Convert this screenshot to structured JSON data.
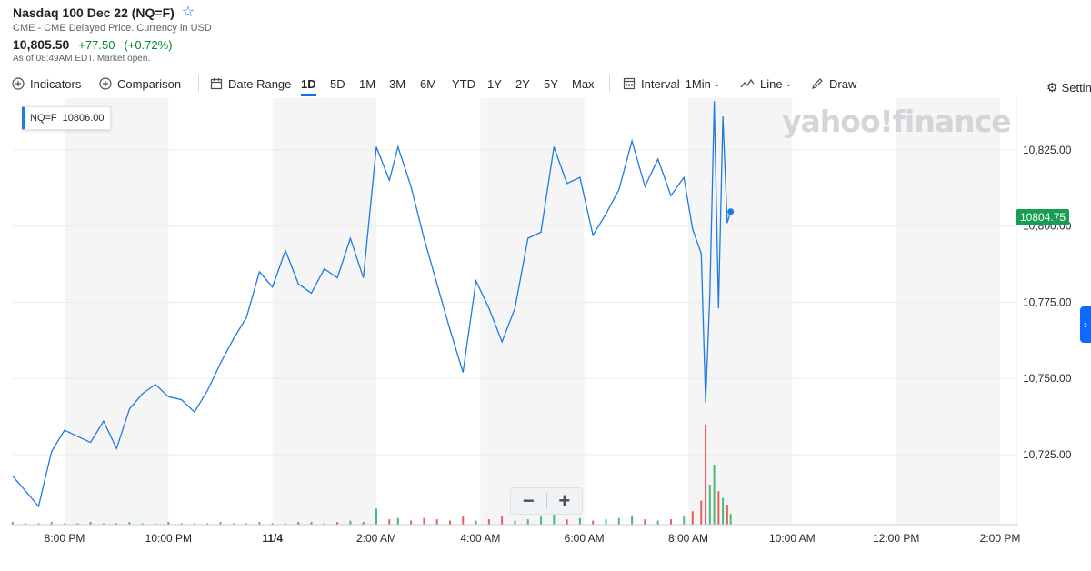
{
  "header": {
    "title": "Nasdaq 100 Dec 22 (NQ=F)",
    "subtitle": "CME - CME Delayed Price. Currency in USD",
    "price": "10,805.50",
    "change": "+77.50",
    "change_pct": "(+0.72%)",
    "status": "As of 08:49AM EDT. Market open."
  },
  "toolbar": {
    "indicators_label": "Indicators",
    "comparison_label": "Comparison",
    "date_range_label": "Date Range",
    "ranges": [
      "1D",
      "5D",
      "1M",
      "3M",
      "6M",
      "YTD",
      "1Y",
      "2Y",
      "5Y",
      "Max"
    ],
    "active_range": "1D",
    "interval_label": "Interval",
    "interval_value": "1Min",
    "chart_type_label": "Line",
    "draw_label": "Draw",
    "settings_label": "Settings"
  },
  "legend": {
    "symbol": "NQ=F",
    "value": "10806.00"
  },
  "watermark": "yahoo!finance",
  "current_price_tag": "10804.75",
  "colors": {
    "line": "#1f7ae0",
    "up": "#26a65b",
    "down": "#e0373a",
    "accent": "#0f69ff"
  },
  "icons": [
    "star-icon",
    "indicators-plus-icon",
    "comparison-plus-icon",
    "calendar-icon",
    "interval-icon",
    "chevron-down-icon",
    "line-chart-icon",
    "draw-pencil-icon",
    "gear-icon",
    "chevron-right-icon"
  ],
  "chart_data": {
    "type": "line",
    "series": [
      {
        "name": "NQ=F",
        "x": [
          "19:00",
          "19:15",
          "19:30",
          "19:45",
          "20:00",
          "20:15",
          "20:30",
          "20:45",
          "21:00",
          "21:15",
          "21:30",
          "21:45",
          "22:00",
          "22:15",
          "22:30",
          "22:45",
          "23:00",
          "23:15",
          "23:30",
          "23:45",
          "00:00",
          "00:15",
          "00:30",
          "00:45",
          "01:00",
          "01:15",
          "01:30",
          "01:45",
          "02:00",
          "02:15",
          "02:25",
          "02:40",
          "02:55",
          "03:10",
          "03:25",
          "03:40",
          "03:55",
          "04:10",
          "04:25",
          "04:40",
          "04:55",
          "05:10",
          "05:25",
          "05:40",
          "05:55",
          "06:10",
          "06:25",
          "06:40",
          "06:55",
          "07:10",
          "07:25",
          "07:40",
          "07:55",
          "08:05",
          "08:15",
          "08:20",
          "08:25",
          "08:30",
          "08:35",
          "08:40",
          "08:45",
          "08:49"
        ],
        "values": [
          10718,
          10713,
          10708,
          10726,
          10733,
          10731,
          10729,
          10736,
          10727,
          10740,
          10745,
          10748,
          10744,
          10743,
          10739,
          10746,
          10755,
          10763,
          10770,
          10785,
          10780,
          10792,
          10781,
          10778,
          10786,
          10783,
          10796,
          10783,
          10826,
          10815,
          10826,
          10813,
          10796,
          10781,
          10766,
          10752,
          10782,
          10773,
          10762,
          10773,
          10796,
          10798,
          10826,
          10814,
          10816,
          10797,
          10804,
          10812,
          10828,
          10813,
          10822,
          10810,
          10816,
          10799,
          10791,
          10742,
          10778,
          10841,
          10773,
          10836,
          10801,
          10804.75
        ]
      }
    ],
    "volume_bars": [
      2,
      1,
      1,
      2,
      1,
      1,
      2,
      1,
      1,
      2,
      1,
      1,
      2,
      1,
      1,
      1,
      2,
      1,
      1,
      2,
      1,
      1,
      2,
      2,
      1,
      2,
      3,
      2,
      12,
      4,
      5,
      3,
      5,
      4,
      3,
      6,
      3,
      4,
      6,
      3,
      4,
      6,
      8,
      4,
      5,
      3,
      4,
      5,
      7,
      4,
      3,
      4,
      6,
      10,
      18,
      75,
      30,
      45,
      25,
      20,
      15,
      8
    ],
    "x_ticks": [
      "8:00 PM",
      "10:00 PM",
      "11/4",
      "2:00 AM",
      "4:00 AM",
      "6:00 AM",
      "8:00 AM",
      "10:00 AM",
      "12:00 PM",
      "2:00 PM"
    ],
    "y_ticks": [
      10725,
      10750,
      10775,
      10800,
      10825
    ],
    "y_tick_labels": [
      "10,725.00",
      "10,750.00",
      "10,775.00",
      "10,800.00",
      "10,825.00"
    ],
    "ylim": [
      10702,
      10842
    ],
    "x_range": [
      "19:00",
      "15:00"
    ],
    "grid": true
  }
}
